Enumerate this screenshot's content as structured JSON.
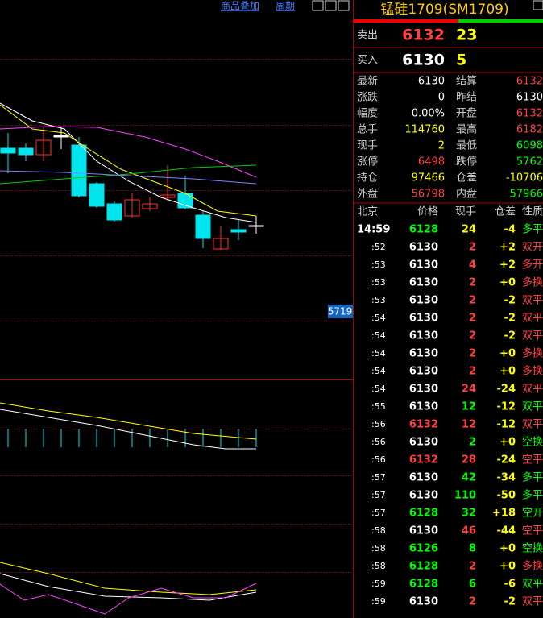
{
  "toolbar": {
    "items": [
      "商品叠加",
      "周期"
    ]
  },
  "chart": {
    "price_tag": "5719"
  },
  "quote": {
    "title": "锰硅1709(SM1709)",
    "sell": {
      "label": "卖出",
      "price": "6132",
      "volume": "23"
    },
    "buy": {
      "label": "买入",
      "price": "6130",
      "volume": "5"
    },
    "stats": [
      [
        "最新",
        "6130",
        "结算",
        "6132"
      ],
      [
        "涨跌",
        "0",
        "昨结",
        "6130"
      ],
      [
        "幅度",
        "0.00%",
        "开盘",
        "6132"
      ],
      [
        "总手",
        "114760",
        "最高",
        "6182"
      ],
      [
        "现手",
        "2",
        "最低",
        "6098"
      ],
      [
        "涨停",
        "6498",
        "跌停",
        "5762"
      ],
      [
        "持仓",
        "97466",
        "仓差",
        "-10706"
      ],
      [
        "外盘",
        "56798",
        "内盘",
        "57966"
      ]
    ]
  },
  "ticks": {
    "header": [
      "北京",
      "价格",
      "现手",
      "仓差",
      "性质"
    ],
    "rows": [
      [
        "14:59",
        "6128",
        "24",
        "-4",
        "多平"
      ],
      [
        ":52",
        "6130",
        "2",
        "+2",
        "双开"
      ],
      [
        ":53",
        "6130",
        "4",
        "+2",
        "多开"
      ],
      [
        ":53",
        "6130",
        "2",
        "+0",
        "多换"
      ],
      [
        ":53",
        "6130",
        "2",
        "-2",
        "双平"
      ],
      [
        ":54",
        "6130",
        "2",
        "-2",
        "双平"
      ],
      [
        ":54",
        "6130",
        "2",
        "-2",
        "双平"
      ],
      [
        ":54",
        "6130",
        "2",
        "+0",
        "多换"
      ],
      [
        ":54",
        "6130",
        "2",
        "+0",
        "多换"
      ],
      [
        ":54",
        "6130",
        "24",
        "-24",
        "双平"
      ],
      [
        ":55",
        "6130",
        "12",
        "-12",
        "双平"
      ],
      [
        ":56",
        "6132",
        "12",
        "-12",
        "双平"
      ],
      [
        ":56",
        "6130",
        "2",
        "+0",
        "空换"
      ],
      [
        ":56",
        "6132",
        "28",
        "-24",
        "空平"
      ],
      [
        ":57",
        "6130",
        "42",
        "-34",
        "多平"
      ],
      [
        ":57",
        "6130",
        "110",
        "-50",
        "多平"
      ],
      [
        ":57",
        "6128",
        "32",
        "+18",
        "空开"
      ],
      [
        ":58",
        "6130",
        "46",
        "-44",
        "空平"
      ],
      [
        ":58",
        "6126",
        "8",
        "+0",
        "空换"
      ],
      [
        ":58",
        "6128",
        "2",
        "+0",
        "多换"
      ],
      [
        ":59",
        "6128",
        "6",
        "-6",
        "双平"
      ],
      [
        ":59",
        "6130",
        "2",
        "-2",
        "双平"
      ]
    ]
  }
}
